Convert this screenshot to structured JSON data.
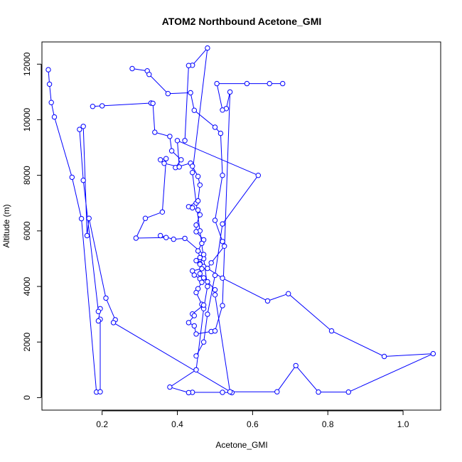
{
  "chart_data": {
    "type": "scatter",
    "title": "ATOM2 Northbound Acetone_GMI",
    "xlabel": "Acetone_GMI",
    "ylabel": "Altitude (m)",
    "xlim": [
      0.04,
      1.1
    ],
    "ylim": [
      -450,
      12800
    ],
    "xticks": [
      0.2,
      0.4,
      0.6,
      0.8,
      1.0
    ],
    "xtick_labels": [
      "0.2",
      "0.4",
      "0.6",
      "0.8",
      "1.0"
    ],
    "yticks": [
      0,
      2000,
      4000,
      6000,
      8000,
      10000,
      12000
    ],
    "ytick_labels": [
      "0",
      "2000",
      "4000",
      "6000",
      "8000",
      "10000",
      "12000"
    ],
    "grid": false,
    "series_color": "#0000ff",
    "marker": "open-circle",
    "series": [
      {
        "points": [
          [
            0.057,
            11800
          ],
          [
            0.06,
            11280
          ],
          [
            0.065,
            10620
          ],
          [
            0.073,
            10100
          ],
          [
            0.12,
            7930
          ],
          [
            0.145,
            6440
          ],
          [
            0.185,
            200
          ],
          [
            0.195,
            210
          ],
          [
            0.195,
            2820
          ],
          [
            0.19,
            2760
          ],
          [
            0.195,
            3200
          ],
          [
            0.19,
            3100
          ],
          [
            0.15,
            7820
          ],
          [
            0.14,
            9650
          ],
          [
            0.15,
            9760
          ],
          [
            0.16,
            5830
          ],
          [
            0.165,
            6450
          ],
          [
            0.21,
            3580
          ],
          [
            0.235,
            2800
          ],
          [
            0.23,
            2700
          ],
          [
            0.545,
            180
          ],
          [
            0.52,
            190
          ],
          [
            0.44,
            190
          ],
          [
            0.43,
            180
          ],
          [
            0.38,
            380
          ],
          [
            0.45,
            1000
          ],
          [
            0.47,
            3200
          ],
          [
            0.48,
            4000
          ],
          [
            0.47,
            5000
          ],
          [
            0.46,
            6000
          ],
          [
            0.45,
            7000
          ],
          [
            0.44,
            8100
          ],
          [
            0.48,
            12580
          ],
          [
            0.44,
            11960
          ],
          [
            0.43,
            11950
          ],
          [
            0.42,
            9250
          ]
        ]
      },
      {
        "points": [
          [
            0.175,
            10480
          ],
          [
            0.2,
            10500
          ],
          [
            0.33,
            10600
          ],
          [
            0.335,
            10590
          ],
          [
            0.34,
            9550
          ],
          [
            0.38,
            9400
          ],
          [
            0.385,
            8880
          ],
          [
            0.41,
            8560
          ],
          [
            0.395,
            8280
          ],
          [
            0.435,
            8440
          ],
          [
            0.44,
            8330
          ],
          [
            0.455,
            7960
          ],
          [
            0.46,
            7650
          ],
          [
            0.455,
            7080
          ],
          [
            0.43,
            6870
          ],
          [
            0.44,
            6830
          ],
          [
            0.455,
            6750
          ],
          [
            0.46,
            6580
          ],
          [
            0.45,
            6210
          ],
          [
            0.45,
            5970
          ],
          [
            0.47,
            5680
          ],
          [
            0.465,
            5550
          ],
          [
            0.455,
            5280
          ],
          [
            0.46,
            5040
          ],
          [
            0.45,
            4930
          ],
          [
            0.46,
            4820
          ],
          [
            0.47,
            4720
          ],
          [
            0.465,
            4640
          ],
          [
            0.44,
            4560
          ],
          [
            0.445,
            4410
          ],
          [
            0.46,
            4280
          ],
          [
            0.465,
            4150
          ],
          [
            0.455,
            3920
          ],
          [
            0.45,
            3780
          ],
          [
            0.465,
            3360
          ],
          [
            0.47,
            3330
          ],
          [
            0.44,
            3010
          ],
          [
            0.445,
            2950
          ],
          [
            0.43,
            2700
          ],
          [
            0.445,
            2580
          ],
          [
            0.45,
            2290
          ],
          [
            0.49,
            2380
          ],
          [
            0.5,
            2400
          ],
          [
            0.52,
            3310
          ],
          [
            0.54,
            11000
          ],
          [
            0.53,
            10400
          ],
          [
            0.52,
            10350
          ],
          [
            0.505,
            11300
          ],
          [
            0.585,
            11300
          ],
          [
            0.645,
            11300
          ],
          [
            0.68,
            11300
          ]
        ]
      },
      {
        "points": [
          [
            0.28,
            11840
          ],
          [
            0.32,
            11760
          ],
          [
            0.325,
            11630
          ],
          [
            0.375,
            10940
          ],
          [
            0.435,
            10970
          ],
          [
            0.445,
            10340
          ],
          [
            0.5,
            9730
          ],
          [
            0.515,
            9510
          ],
          [
            0.52,
            8000
          ],
          [
            0.5,
            6380
          ],
          [
            0.52,
            5620
          ],
          [
            0.525,
            5450
          ],
          [
            0.49,
            4850
          ],
          [
            0.48,
            4650
          ],
          [
            0.52,
            4300
          ],
          [
            0.64,
            3480
          ],
          [
            0.695,
            3740
          ],
          [
            0.81,
            2400
          ],
          [
            0.95,
            1480
          ],
          [
            1.08,
            1580
          ],
          [
            0.855,
            200
          ],
          [
            0.775,
            200
          ],
          [
            0.715,
            1150
          ],
          [
            0.665,
            210
          ],
          [
            0.54,
            210
          ],
          [
            0.5,
            3700
          ],
          [
            0.5,
            3880
          ],
          [
            0.48,
            4170
          ],
          [
            0.47,
            4310
          ],
          [
            0.46,
            4460
          ],
          [
            0.46,
            4800
          ],
          [
            0.47,
            5150
          ],
          [
            0.42,
            5730
          ],
          [
            0.39,
            5700
          ],
          [
            0.355,
            5830
          ],
          [
            0.37,
            5760
          ],
          [
            0.29,
            5740
          ],
          [
            0.315,
            6450
          ],
          [
            0.36,
            6680
          ],
          [
            0.37,
            8600
          ],
          [
            0.355,
            8560
          ],
          [
            0.365,
            8430
          ],
          [
            0.405,
            8300
          ],
          [
            0.4,
            9250
          ],
          [
            0.615,
            8000
          ],
          [
            0.52,
            6250
          ],
          [
            0.5,
            4400
          ],
          [
            0.48,
            3000
          ],
          [
            0.47,
            2000
          ],
          [
            0.45,
            1500
          ]
        ]
      }
    ]
  }
}
